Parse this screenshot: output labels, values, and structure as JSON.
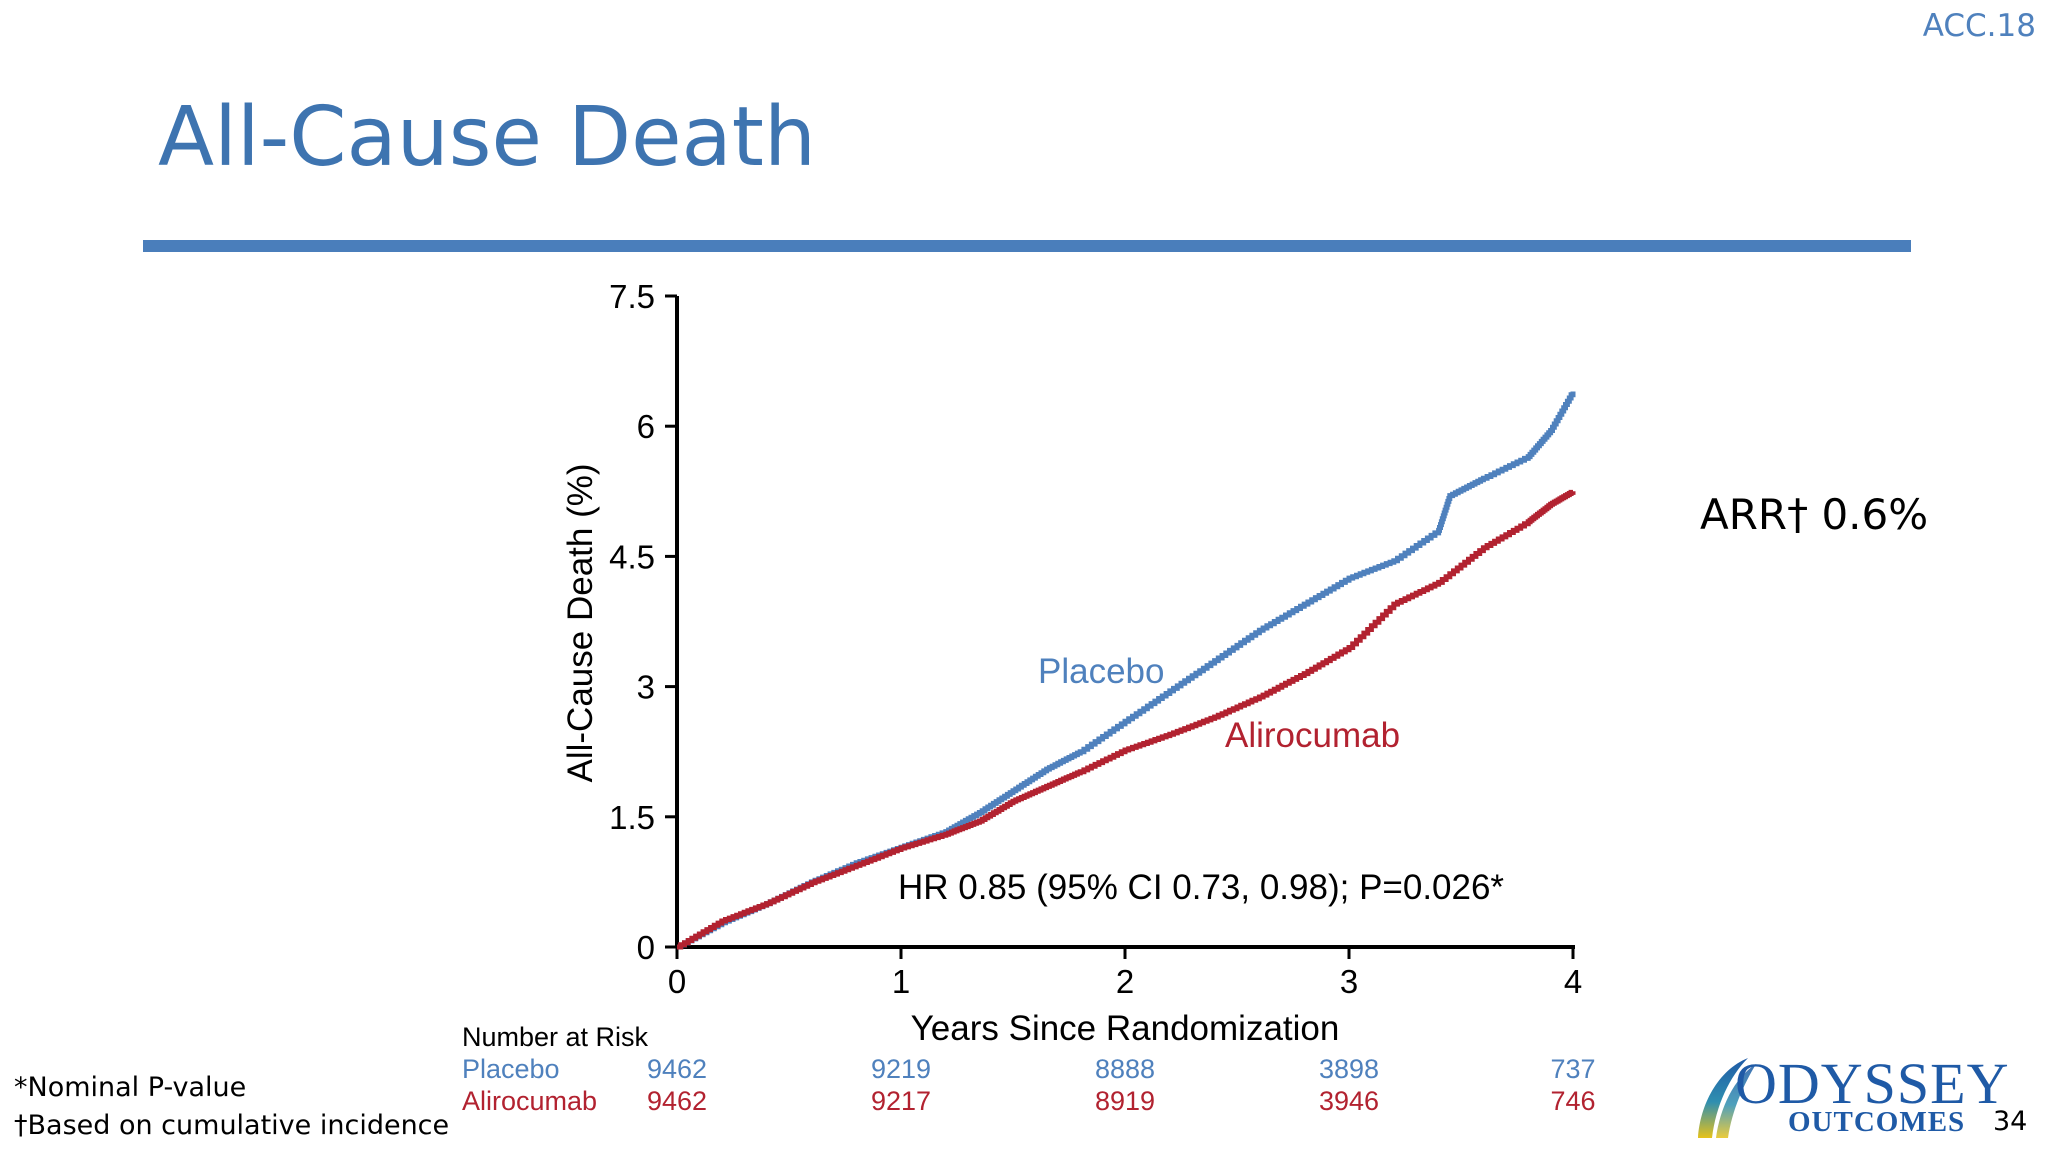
{
  "header": {
    "tag": "ACC.18",
    "title": "All-Cause Death"
  },
  "annotation": {
    "arr": "ARR† 0.6%"
  },
  "footnotes": [
    "*Nominal P-value",
    "†Based on cumulative incidence"
  ],
  "logo": {
    "word1": "ODYSSEY",
    "word2": "OUTCOMES"
  },
  "page_number": "34",
  "colors": {
    "placebo": "#4f81bd",
    "alirocumab": "#b22230",
    "title": "#3e74b0",
    "rule": "#4a7ebb"
  },
  "chart_data": {
    "type": "line",
    "ylabel": "All-Cause Death (%)",
    "xlabel": "Years Since Randomization",
    "xlim": [
      0,
      4
    ],
    "ylim": [
      0,
      7.5
    ],
    "x_ticks": [
      0,
      1,
      2,
      3,
      4
    ],
    "x_tick_labels": [
      "0",
      "1",
      "2",
      "3",
      "4"
    ],
    "y_ticks": [
      0,
      1.5,
      3,
      4.5,
      6,
      7.5
    ],
    "y_tick_labels": [
      "0",
      "1.5",
      "3",
      "4.5",
      "6",
      "7.5"
    ],
    "series": [
      {
        "name": "Placebo",
        "color": "#4f81bd",
        "x": [
          0,
          0.2,
          0.4,
          0.6,
          0.8,
          1.0,
          1.2,
          1.35,
          1.5,
          1.65,
          1.8,
          2.0,
          2.2,
          2.4,
          2.6,
          2.8,
          3.0,
          3.2,
          3.4,
          3.45,
          3.6,
          3.8,
          3.9,
          4.0
        ],
        "y": [
          0,
          0.28,
          0.5,
          0.75,
          0.97,
          1.15,
          1.33,
          1.55,
          1.8,
          2.05,
          2.25,
          2.6,
          2.95,
          3.3,
          3.65,
          3.95,
          4.25,
          4.45,
          4.8,
          5.2,
          5.4,
          5.65,
          5.95,
          6.4
        ]
      },
      {
        "name": "Alirocumab",
        "color": "#b22230",
        "x": [
          0,
          0.2,
          0.4,
          0.6,
          0.8,
          1.0,
          1.2,
          1.35,
          1.5,
          1.65,
          1.8,
          2.0,
          2.2,
          2.4,
          2.6,
          2.8,
          3.0,
          3.2,
          3.4,
          3.6,
          3.8,
          3.9,
          4.0
        ],
        "y": [
          0,
          0.3,
          0.5,
          0.74,
          0.94,
          1.14,
          1.3,
          1.45,
          1.68,
          1.85,
          2.02,
          2.27,
          2.45,
          2.65,
          2.88,
          3.15,
          3.45,
          3.95,
          4.2,
          4.6,
          4.9,
          5.1,
          5.25
        ]
      }
    ],
    "series_labels": {
      "placebo": "Placebo",
      "alirocumab": "Alirocumab"
    },
    "hr_text": "HR 0.85 (95% CI 0.73, 0.98); P=0.026*",
    "risk_table": {
      "title": "Number at Risk",
      "rows": [
        {
          "label": "Placebo",
          "values": [
            "9462",
            "9219",
            "8888",
            "3898",
            "737"
          ]
        },
        {
          "label": "Alirocumab",
          "values": [
            "9462",
            "9217",
            "8919",
            "3946",
            "746"
          ]
        }
      ]
    }
  }
}
